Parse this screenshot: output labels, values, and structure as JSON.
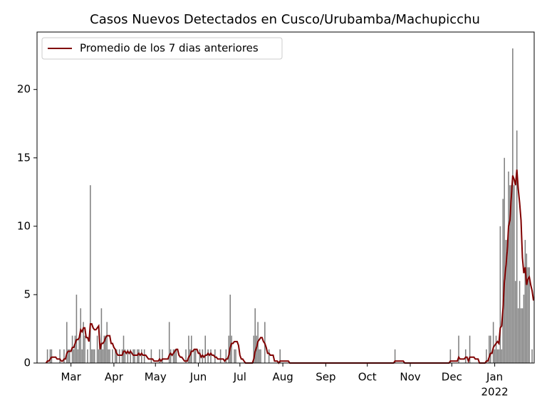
{
  "chart_data": {
    "type": "bar",
    "title": "Casos Nuevos Detectados en Cusco/Urubamba/Machupicchu",
    "categories": [
      null,
      null,
      null,
      null,
      null,
      null,
      null,
      null,
      null,
      null,
      null,
      null,
      null,
      null,
      null,
      null,
      null,
      null,
      null,
      null,
      null,
      null,
      null,
      null,
      "Mar",
      null,
      null,
      null,
      null,
      null,
      null,
      null,
      null,
      null,
      null,
      null,
      null,
      null,
      null,
      null,
      null,
      null,
      null,
      null,
      null,
      null,
      null,
      null,
      null,
      null,
      null,
      null,
      null,
      null,
      null,
      "Apr",
      null,
      null,
      null,
      null,
      null,
      null,
      null,
      null,
      null,
      null,
      null,
      null,
      null,
      null,
      null,
      null,
      null,
      null,
      null,
      null,
      null,
      null,
      null,
      null,
      null,
      null,
      null,
      null,
      null,
      "May",
      null,
      null,
      null,
      null,
      null,
      null,
      null,
      null,
      null,
      null,
      null,
      null,
      null,
      null,
      null,
      null,
      null,
      null,
      null,
      null,
      null,
      null,
      null,
      null,
      null,
      null,
      null,
      null,
      null,
      null,
      "Jun",
      null,
      null,
      null,
      null,
      null,
      null,
      null,
      null,
      null,
      null,
      null,
      null,
      null,
      null,
      null,
      null,
      null,
      null,
      null,
      null,
      null,
      null,
      null,
      null,
      null,
      null,
      null,
      null,
      null,
      "Jul",
      null,
      null,
      null,
      null,
      null,
      null,
      null,
      null,
      null,
      null,
      null,
      null,
      null,
      null,
      null,
      null,
      null,
      null,
      null,
      null,
      null,
      null,
      null,
      null,
      null,
      null,
      null,
      null,
      null,
      null,
      "Aug",
      null,
      null,
      null,
      null,
      null,
      null,
      null,
      null,
      null,
      null,
      null,
      null,
      null,
      null,
      null,
      null,
      null,
      null,
      null,
      null,
      null,
      null,
      null,
      null,
      null,
      null,
      null,
      null,
      null,
      null,
      "Sep",
      null,
      null,
      null,
      null,
      null,
      null,
      null,
      null,
      null,
      null,
      null,
      null,
      null,
      null,
      null,
      null,
      null,
      null,
      null,
      null,
      null,
      null,
      null,
      null,
      null,
      null,
      null,
      null,
      null,
      "Oct",
      null,
      null,
      null,
      null,
      null,
      null,
      null,
      null,
      null,
      null,
      null,
      null,
      null,
      null,
      null,
      null,
      null,
      null,
      null,
      null,
      null,
      null,
      null,
      null,
      null,
      null,
      null,
      null,
      null,
      null,
      "Nov",
      null,
      null,
      null,
      null,
      null,
      null,
      null,
      null,
      null,
      null,
      null,
      null,
      null,
      null,
      null,
      null,
      null,
      null,
      null,
      null,
      null,
      null,
      null,
      null,
      null,
      null,
      null,
      null,
      null,
      "Dec",
      null,
      null,
      null,
      null,
      null,
      null,
      null,
      null,
      null,
      null,
      null,
      null,
      null,
      null,
      null,
      null,
      null,
      null,
      null,
      null,
      null,
      null,
      null,
      null,
      null,
      null,
      null,
      null,
      null,
      null,
      "Jan",
      null,
      null,
      null,
      null,
      null,
      null,
      null,
      null,
      null,
      null,
      null,
      null,
      null,
      null,
      null,
      null,
      null,
      null,
      null,
      null,
      null,
      null,
      null,
      null,
      null,
      null,
      null,
      null
    ],
    "year_label": "2022",
    "series": [
      {
        "type": "bar",
        "color": "#808080",
        "values": [
          0,
          0,
          0,
          0,
          0,
          0,
          0,
          1,
          0,
          1,
          1,
          0,
          0,
          0,
          0,
          0,
          1,
          0,
          0,
          1,
          0,
          3,
          1,
          1,
          0,
          2,
          1,
          2,
          5,
          1,
          2,
          4,
          1,
          3,
          2,
          0,
          1,
          0,
          13,
          1,
          1,
          1,
          0,
          2,
          1,
          1,
          4,
          1,
          2,
          2,
          3,
          1,
          1,
          0,
          1,
          0,
          1,
          1,
          0,
          1,
          0,
          1,
          2,
          1,
          0,
          1,
          0,
          1,
          0,
          1,
          1,
          0,
          1,
          1,
          0,
          1,
          0,
          1,
          0,
          0,
          0,
          0,
          1,
          0,
          0,
          0,
          0,
          0,
          1,
          0,
          1,
          0,
          0,
          0,
          0,
          3,
          1,
          0,
          1,
          1,
          1,
          0,
          0,
          0,
          0,
          0,
          0,
          1,
          0,
          2,
          1,
          2,
          0,
          1,
          1,
          0,
          0,
          1,
          0,
          1,
          0,
          2,
          0,
          1,
          0,
          1,
          0,
          0,
          1,
          0,
          0,
          0,
          1,
          0,
          0,
          0,
          1,
          0,
          2,
          5,
          2,
          0,
          1,
          1,
          0,
          0,
          0,
          0,
          0,
          0,
          0,
          0,
          0,
          0,
          0,
          0,
          2,
          4,
          2,
          3,
          1,
          1,
          0,
          0,
          3,
          0,
          0,
          1,
          0,
          0,
          0,
          0,
          0,
          0,
          0,
          1,
          0,
          0,
          0,
          0,
          0,
          0,
          0,
          0,
          0,
          0,
          0,
          0,
          0,
          0,
          0,
          0,
          0,
          0,
          0,
          0,
          0,
          0,
          0,
          0,
          0,
          0,
          0,
          0,
          0,
          0,
          0,
          0,
          0,
          0,
          0,
          0,
          0,
          0,
          0,
          0,
          0,
          0,
          0,
          0,
          0,
          0,
          0,
          0,
          0,
          0,
          0,
          0,
          0,
          0,
          0,
          0,
          0,
          0,
          0,
          0,
          0,
          0,
          0,
          0,
          0,
          0,
          0,
          0,
          0,
          0,
          0,
          0,
          0,
          0,
          0,
          0,
          0,
          0,
          0,
          0,
          0,
          0,
          1,
          0,
          0,
          0,
          0,
          0,
          0,
          0,
          0,
          0,
          0,
          0,
          0,
          0,
          0,
          0,
          0,
          0,
          0,
          0,
          0,
          0,
          0,
          0,
          0,
          0,
          0,
          0,
          0,
          0,
          0,
          0,
          0,
          0,
          0,
          0,
          0,
          0,
          0,
          0,
          1,
          0,
          0,
          0,
          0,
          0,
          2,
          0,
          0,
          0,
          0,
          1,
          0,
          0,
          2,
          0,
          0,
          0,
          0,
          0,
          0,
          0,
          0,
          0,
          0,
          0,
          1,
          0,
          2,
          2,
          0,
          3,
          1,
          2,
          1,
          1,
          10,
          1,
          12,
          15,
          9,
          9,
          14,
          13,
          13,
          23,
          13,
          6,
          17,
          4,
          6,
          4,
          4,
          5,
          9,
          8,
          7,
          7,
          0,
          1,
          0
        ]
      },
      {
        "type": "line",
        "name": "Promedio de los 7 dias anteriores",
        "color": "#800000",
        "values": [
          null,
          null,
          null,
          null,
          null,
          null,
          0,
          0.14,
          0.14,
          0.29,
          0.43,
          0.43,
          0.43,
          0.43,
          0.29,
          0.29,
          0.29,
          0.14,
          0.14,
          0.29,
          0.29,
          0.71,
          0.86,
          0.86,
          0.86,
          1.14,
          1.14,
          1.43,
          1.71,
          1.71,
          1.86,
          2.43,
          2.29,
          2.57,
          2.57,
          1.86,
          1.86,
          1.57,
          2.86,
          2.86,
          2.57,
          2.43,
          2.43,
          2.57,
          2.71,
          1,
          1.43,
          1.43,
          1.57,
          1.86,
          2,
          2,
          2,
          1.43,
          1.43,
          1.14,
          1,
          0.71,
          0.57,
          0.57,
          0.57,
          0.57,
          0.86,
          0.86,
          0.71,
          0.86,
          0.71,
          0.86,
          0.71,
          0.57,
          0.57,
          0.57,
          0.57,
          0.71,
          0.57,
          0.71,
          0.57,
          0.57,
          0.57,
          0.43,
          0.29,
          0.29,
          0.29,
          0.29,
          0.14,
          0.14,
          0.14,
          0.14,
          0.29,
          0.14,
          0.29,
          0.29,
          0.29,
          0.29,
          0.29,
          0.57,
          0.71,
          0.57,
          0.71,
          0.86,
          1,
          1,
          0.57,
          0.43,
          0.43,
          0.29,
          0.14,
          0.14,
          0.14,
          0.43,
          0.57,
          0.86,
          0.86,
          1,
          1,
          1,
          0.71,
          0.71,
          0.43,
          0.57,
          0.43,
          0.57,
          0.57,
          0.71,
          0.57,
          0.71,
          0.57,
          0.57,
          0.43,
          0.43,
          0.29,
          0.29,
          0.29,
          0.29,
          0.29,
          0.14,
          0.29,
          0.29,
          0.57,
          1.14,
          1.43,
          1.43,
          1.57,
          1.57,
          1.57,
          1.29,
          0.57,
          0.29,
          0.29,
          0.14,
          0,
          0,
          0,
          0,
          0,
          0,
          0.29,
          0.86,
          1.14,
          1.57,
          1.71,
          1.86,
          1.86,
          1.57,
          1.43,
          1.14,
          0.71,
          0.71,
          0.57,
          0.57,
          0.57,
          0.14,
          0.14,
          0.14,
          0,
          0.14,
          0.14,
          0.14,
          0.14,
          0.14,
          0.14,
          0.14,
          0,
          0,
          0,
          0,
          0,
          0,
          0,
          0,
          0,
          0,
          0,
          0,
          0,
          0,
          0,
          0,
          0,
          0,
          0,
          0,
          0,
          0,
          0,
          0,
          0,
          0,
          0,
          0,
          0,
          0,
          0,
          0,
          0,
          0,
          0,
          0,
          0,
          0,
          0,
          0,
          0,
          0,
          0,
          0,
          0,
          0,
          0,
          0,
          0,
          0,
          0,
          0,
          0,
          0,
          0,
          0,
          0,
          0,
          0,
          0,
          0,
          0,
          0,
          0,
          0,
          0,
          0,
          0,
          0,
          0,
          0,
          0,
          0,
          0,
          0,
          0,
          0.14,
          0.14,
          0.14,
          0.14,
          0.14,
          0.14,
          0.14,
          0,
          0,
          0,
          0,
          0,
          0,
          0,
          0,
          0,
          0,
          0,
          0,
          0,
          0,
          0,
          0,
          0,
          0,
          0,
          0,
          0,
          0,
          0,
          0,
          0,
          0,
          0,
          0,
          0,
          0,
          0,
          0,
          0,
          0.14,
          0.14,
          0.14,
          0.14,
          0.14,
          0.14,
          0.43,
          0.29,
          0.29,
          0.29,
          0.29,
          0.43,
          0.43,
          0.14,
          0.43,
          0.43,
          0.43,
          0.43,
          0.29,
          0.29,
          0.29,
          0,
          0,
          0,
          0,
          0,
          0.14,
          0.14,
          0.43,
          0.71,
          0.71,
          1.14,
          1.29,
          1.43,
          1.57,
          1.43,
          2.57,
          2.71,
          4,
          6,
          7,
          8.14,
          10,
          10.43,
          12.14,
          13.71,
          13.43,
          13,
          14.14,
          12.71,
          11.71,
          10.43,
          7.71,
          6.57,
          7,
          5.71,
          6.14,
          6.29,
          5.71,
          5.29,
          4.57
        ]
      }
    ],
    "ylim": [
      0,
      24.2
    ],
    "yticks": [
      0,
      5,
      10,
      15,
      20
    ],
    "legend": "upper left"
  }
}
